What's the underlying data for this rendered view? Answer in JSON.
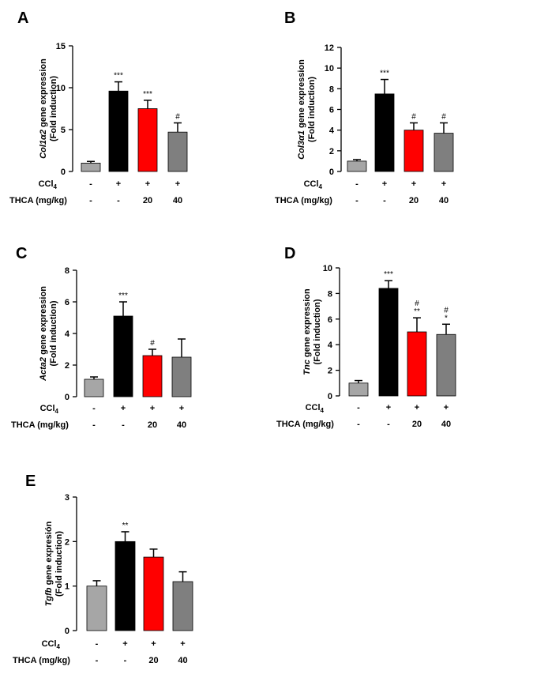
{
  "chart_data": [
    {
      "type": "bar",
      "panel": "A",
      "ylabel_gene": "Col1α2",
      "ylabel_suffix": " gene expression",
      "ylabel_line2": "(Fold induction)",
      "ylim": [
        0,
        15
      ],
      "yticks": [
        0,
        5,
        10,
        15
      ],
      "categories": [
        "Control",
        "CCl4",
        "CCl4 + THCA 20",
        "CCl4 + THCA 40"
      ],
      "values": [
        1.0,
        9.6,
        7.5,
        4.7
      ],
      "errors": [
        0.2,
        1.1,
        1.0,
        1.1
      ],
      "bar_colors": [
        "#a6a6a6",
        "#000000",
        "#ff0000",
        "#7f7f7f"
      ],
      "annotations": [
        [],
        [
          "***"
        ],
        [
          "***"
        ],
        [
          "#"
        ]
      ],
      "ccl4_row": [
        "-",
        "+",
        "+",
        "+"
      ],
      "thca_row": [
        "-",
        "-",
        "20",
        "40"
      ]
    },
    {
      "type": "bar",
      "panel": "B",
      "ylabel_gene": "Col3α1",
      "ylabel_suffix": " gene expression",
      "ylabel_line2": "(Fold induction)",
      "ylim": [
        0,
        12
      ],
      "yticks": [
        0,
        2,
        4,
        6,
        8,
        10,
        12
      ],
      "categories": [
        "Control",
        "CCl4",
        "CCl4 + THCA 20",
        "CCl4 + THCA 40"
      ],
      "values": [
        1.0,
        7.5,
        4.0,
        3.7
      ],
      "errors": [
        0.15,
        1.4,
        0.7,
        1.0
      ],
      "bar_colors": [
        "#a6a6a6",
        "#000000",
        "#ff0000",
        "#7f7f7f"
      ],
      "annotations": [
        [],
        [
          "***"
        ],
        [
          "#"
        ],
        [
          "#"
        ]
      ],
      "ccl4_row": [
        "-",
        "+",
        "+",
        "+"
      ],
      "thca_row": [
        "-",
        "-",
        "20",
        "40"
      ]
    },
    {
      "type": "bar",
      "panel": "C",
      "ylabel_gene": "Acta2",
      "ylabel_suffix": " gene expression",
      "ylabel_line2": "(Fold induction)",
      "ylim": [
        0,
        8
      ],
      "yticks": [
        0,
        2,
        4,
        6,
        8
      ],
      "categories": [
        "Control",
        "CCl4",
        "CCl4 + THCA 20",
        "CCl4 + THCA 40"
      ],
      "values": [
        1.1,
        5.1,
        2.6,
        2.5
      ],
      "errors": [
        0.15,
        0.9,
        0.4,
        1.15
      ],
      "bar_colors": [
        "#a6a6a6",
        "#000000",
        "#ff0000",
        "#7f7f7f"
      ],
      "annotations": [
        [],
        [
          "***"
        ],
        [
          "#"
        ],
        []
      ],
      "ccl4_row": [
        "-",
        "+",
        "+",
        "+"
      ],
      "thca_row": [
        "-",
        "-",
        "20",
        "40"
      ]
    },
    {
      "type": "bar",
      "panel": "D",
      "ylabel_gene": "Tnc",
      "ylabel_suffix": " gene expression",
      "ylabel_line2": "(Fold induction)",
      "ylim": [
        0,
        10
      ],
      "yticks": [
        0,
        2,
        4,
        6,
        8,
        10
      ],
      "categories": [
        "Control",
        "CCl4",
        "CCl4 + THCA 20",
        "CCl4 + THCA 40"
      ],
      "values": [
        1.0,
        8.4,
        5.0,
        4.8
      ],
      "errors": [
        0.2,
        0.6,
        1.1,
        0.8
      ],
      "bar_colors": [
        "#a6a6a6",
        "#000000",
        "#ff0000",
        "#7f7f7f"
      ],
      "annotations": [
        [],
        [
          "***"
        ],
        [
          "#",
          "**"
        ],
        [
          "#",
          "*"
        ]
      ],
      "ccl4_row": [
        "-",
        "+",
        "+",
        "+"
      ],
      "thca_row": [
        "-",
        "-",
        "20",
        "40"
      ]
    },
    {
      "type": "bar",
      "panel": "E",
      "ylabel_gene": "Tgfb",
      "ylabel_suffix": " gene expresión",
      "ylabel_line2": "(Fold induction)",
      "ylim": [
        0,
        3
      ],
      "yticks": [
        0,
        1,
        2,
        3
      ],
      "categories": [
        "Control",
        "CCl4",
        "CCl4 + THCA 20",
        "CCl4 + THCA 40"
      ],
      "values": [
        1.0,
        2.0,
        1.65,
        1.1
      ],
      "errors": [
        0.12,
        0.22,
        0.18,
        0.22
      ],
      "bar_colors": [
        "#a6a6a6",
        "#000000",
        "#ff0000",
        "#7f7f7f"
      ],
      "annotations": [
        [],
        [
          "**"
        ],
        [],
        []
      ],
      "ccl4_row": [
        "-",
        "+",
        "+",
        "+"
      ],
      "thca_row": [
        "-",
        "-",
        "20",
        "40"
      ]
    }
  ],
  "row_labels": {
    "ccl4_main": "CCl",
    "ccl4_sub": "4",
    "thca": "THCA (mg/kg)"
  }
}
